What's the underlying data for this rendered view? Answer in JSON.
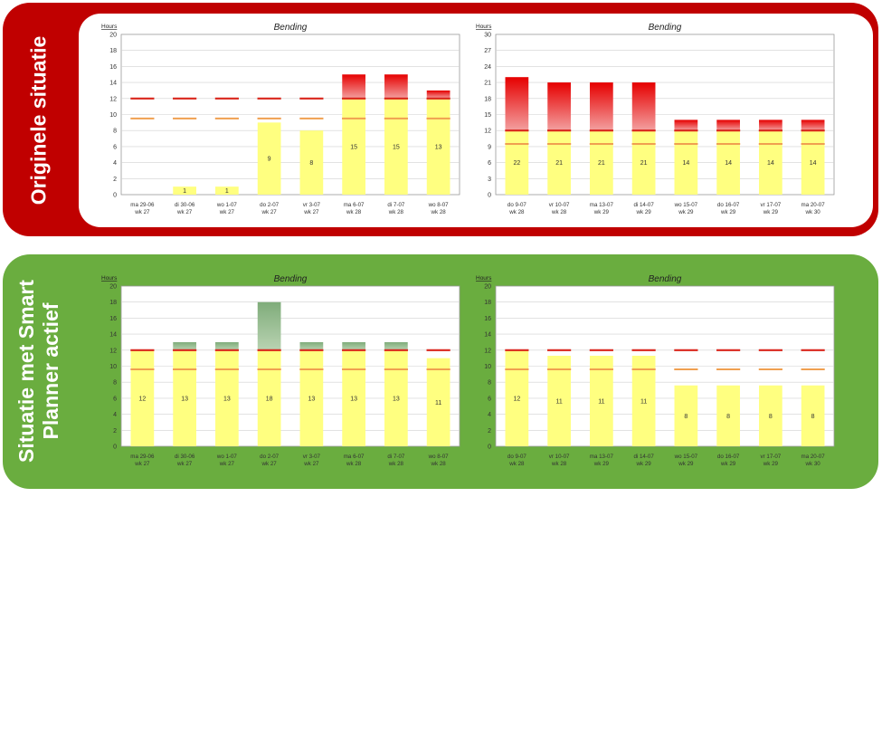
{
  "sections": [
    {
      "label_lines": [
        "Originele situatie"
      ]
    },
    {
      "label_lines": [
        "Situatie met Smart",
        "Planner actief"
      ]
    }
  ],
  "colors": {
    "base": "#ffff80",
    "overflow_orig": "#f3a0a0",
    "overflow_orig_dark": "#e60000",
    "overflow_smart": "#b9d3b2",
    "overflow_smart_dark": "#7fac7a",
    "capacity_line": "#d9261c",
    "norm_line": "#f0a050",
    "grid": "#d0d0d0"
  },
  "chart_data": [
    {
      "type": "bar",
      "section": "Originele situatie",
      "title": "Bending",
      "ylabel": "Hours",
      "ylim": [
        0,
        20
      ],
      "yticks": [
        0,
        2,
        4,
        6,
        8,
        10,
        12,
        14,
        16,
        18,
        20
      ],
      "categories": [
        [
          "ma 29-06",
          "wk 27"
        ],
        [
          "di 30-06",
          "wk 27"
        ],
        [
          "wo 1-07",
          "wk 27"
        ],
        [
          "do 2-07",
          "wk 27"
        ],
        [
          "vr 3-07",
          "wk 27"
        ],
        [
          "ma 6-07",
          "wk 28"
        ],
        [
          "di 7-07",
          "wk 28"
        ],
        [
          "wo 8-07",
          "wk 28"
        ]
      ],
      "values": [
        0,
        1,
        1,
        9,
        8,
        15,
        15,
        13
      ],
      "labels": [
        "",
        "1",
        "1",
        "9",
        "8",
        "15",
        "15",
        "13"
      ],
      "capacity": 12,
      "norm": 9.5,
      "overflow_style": "red-fade"
    },
    {
      "type": "bar",
      "section": "Originele situatie",
      "title": "Bending",
      "ylabel": "Hours",
      "ylim": [
        0,
        30
      ],
      "yticks": [
        0,
        3,
        6,
        9,
        12,
        15,
        18,
        21,
        24,
        27,
        30
      ],
      "categories": [
        [
          "do 9-07",
          "wk 28"
        ],
        [
          "vr 10-07",
          "wk 28"
        ],
        [
          "ma 13-07",
          "wk 29"
        ],
        [
          "di 14-07",
          "wk 29"
        ],
        [
          "wo 15-07",
          "wk 29"
        ],
        [
          "do 16-07",
          "wk 29"
        ],
        [
          "vr 17-07",
          "wk 29"
        ],
        [
          "ma 20-07",
          "wk 30"
        ]
      ],
      "values": [
        22,
        21,
        21,
        21,
        14,
        14,
        14,
        14
      ],
      "labels": [
        "22",
        "21",
        "21",
        "21",
        "14",
        "14",
        "14",
        "14"
      ],
      "capacity": 12,
      "norm": 9.5,
      "overflow_style": "red-fade"
    },
    {
      "type": "bar",
      "section": "Situatie met Smart Planner actief",
      "title": "Bending",
      "ylabel": "Hours",
      "ylim": [
        0,
        20
      ],
      "yticks": [
        0,
        2,
        4,
        6,
        8,
        10,
        12,
        14,
        16,
        18,
        20
      ],
      "categories": [
        [
          "ma 29-06",
          "wk 27"
        ],
        [
          "di 30-06",
          "wk 27"
        ],
        [
          "wo 1-07",
          "wk 27"
        ],
        [
          "do 2-07",
          "wk 27"
        ],
        [
          "vr 3-07",
          "wk 27"
        ],
        [
          "ma 6-07",
          "wk 28"
        ],
        [
          "di 7-07",
          "wk 28"
        ],
        [
          "wo 8-07",
          "wk 28"
        ]
      ],
      "values": [
        12,
        13,
        13,
        18,
        13,
        13,
        13,
        11
      ],
      "labels": [
        "12",
        "13",
        "13",
        "18",
        "13",
        "13",
        "13",
        "11"
      ],
      "capacity": 12,
      "norm": 9.6,
      "overflow_style": "green-fade"
    },
    {
      "type": "bar",
      "section": "Situatie met Smart Planner actief",
      "title": "Bending",
      "ylabel": "Hours",
      "ylim": [
        0,
        20
      ],
      "yticks": [
        0,
        2,
        4,
        6,
        8,
        10,
        12,
        14,
        16,
        18,
        20
      ],
      "categories": [
        [
          "do 9-07",
          "wk 28"
        ],
        [
          "vr 10-07",
          "wk 28"
        ],
        [
          "ma 13-07",
          "wk 29"
        ],
        [
          "di 14-07",
          "wk 29"
        ],
        [
          "wo 15-07",
          "wk 29"
        ],
        [
          "do 16-07",
          "wk 29"
        ],
        [
          "vr 17-07",
          "wk 29"
        ],
        [
          "ma 20-07",
          "wk 30"
        ]
      ],
      "values": [
        12,
        11.3,
        11.3,
        11.3,
        7.6,
        7.6,
        7.6,
        7.6
      ],
      "labels": [
        "12",
        "11",
        "11",
        "11",
        "8",
        "8",
        "8",
        "8"
      ],
      "capacity": 12,
      "norm": 9.6,
      "overflow_style": "green-fade"
    }
  ]
}
